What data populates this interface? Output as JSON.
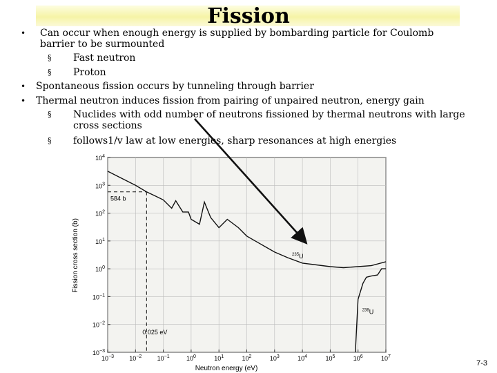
{
  "slide": {
    "title": "Fission",
    "bullets": [
      {
        "text": "Can occur when enough energy is supplied by bombarding particle for Coulomb",
        "cont": "barrier to be surmounted",
        "sub": [
          "Fast neutron",
          "Proton"
        ]
      },
      {
        "text": "Spontaneous fission occurs by tunneling through barrier",
        "sub": []
      },
      {
        "text": "Thermal neutron induces fission from pairing of unpaired neutron, energy gain",
        "sub": [
          {
            "text": "Nuclides with odd number of neutrons fissioned by thermal neutrons with large",
            "cont": "cross sections"
          },
          {
            "text": "follows1/v law at low energies, sharp resonances at high energies"
          }
        ]
      }
    ],
    "page_number": "7-3"
  },
  "bullet_marker": "•",
  "sub_marker": "§",
  "chart_data": {
    "type": "line",
    "xlabel": "Neutron energy (eV)",
    "ylabel": "Fission cross section (b)",
    "xscale": "log",
    "yscale": "log",
    "xlim": [
      0.001,
      10000000
    ],
    "ylim": [
      0.001,
      10000
    ],
    "x_ticks": [
      "10^-3",
      "10^-2",
      "10^-1",
      "10^0",
      "10^1",
      "10^2",
      "10^3",
      "10^4",
      "10^5",
      "10^6",
      "10^7"
    ],
    "y_ticks": [
      "10^-3",
      "10^-2",
      "10^-1",
      "10^0",
      "10^1",
      "10^2",
      "10^3",
      "10^4"
    ],
    "annotations": [
      "584 b",
      "0.025 eV"
    ],
    "series": [
      {
        "name": "235U",
        "points": [
          [
            0.001,
            3200
          ],
          [
            0.01,
            1000
          ],
          [
            0.025,
            584
          ],
          [
            0.05,
            420
          ],
          [
            0.1,
            300
          ],
          [
            0.2,
            150
          ],
          [
            0.28,
            280
          ],
          [
            0.5,
            110
          ],
          [
            0.8,
            110
          ],
          [
            1,
            60
          ],
          [
            2,
            40
          ],
          [
            3,
            250
          ],
          [
            5,
            70
          ],
          [
            10,
            30
          ],
          [
            20,
            60
          ],
          [
            50,
            30
          ],
          [
            100,
            15
          ],
          [
            300,
            8
          ],
          [
            1000,
            4
          ],
          [
            3000,
            2.5
          ],
          [
            10000,
            1.6
          ],
          [
            100000,
            1.2
          ],
          [
            300000,
            1.1
          ],
          [
            1000000,
            1.2
          ],
          [
            3000000,
            1.3
          ],
          [
            10000000,
            1.8
          ]
        ]
      },
      {
        "name": "238U",
        "points": [
          [
            800000,
            0.001
          ],
          [
            1000000,
            0.08
          ],
          [
            1500000,
            0.3
          ],
          [
            2000000,
            0.5
          ],
          [
            3000000,
            0.55
          ],
          [
            5000000,
            0.6
          ],
          [
            7000000,
            1.0
          ],
          [
            10000000,
            1.0
          ]
        ]
      }
    ]
  }
}
